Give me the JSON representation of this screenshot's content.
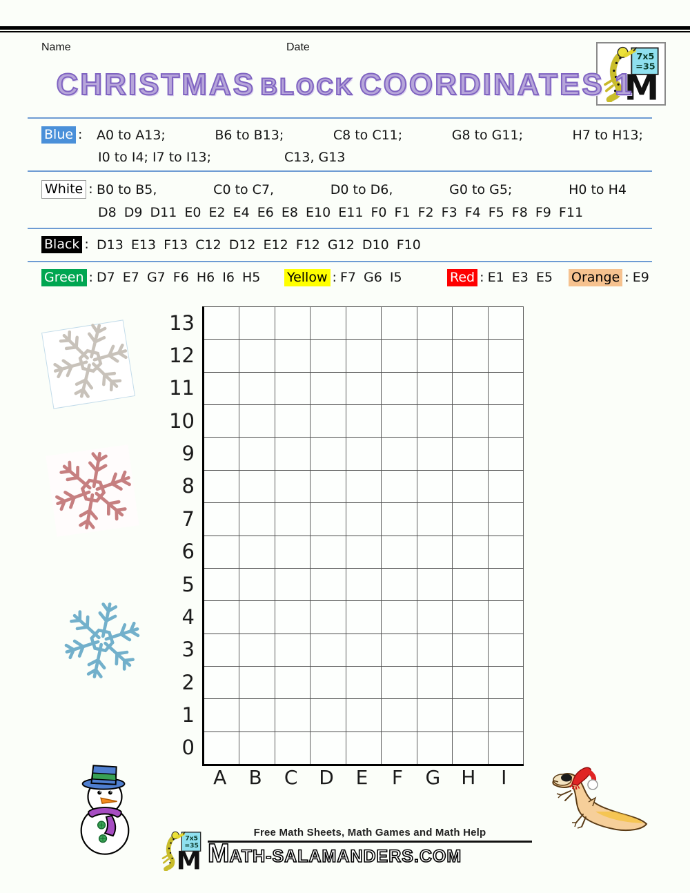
{
  "page": {
    "name_label": "Name",
    "date_label": "Date"
  },
  "title": {
    "word1": "CHRISTMAS",
    "word2": "BLOCK",
    "word3": "COORDINATES 1"
  },
  "logo": {
    "equation_line1": "7x5",
    "equation_line2": "=35",
    "monogram": "M"
  },
  "sections": {
    "blue": {
      "label": "Blue",
      "bg": "#4a90d9",
      "fg": "#ffffff",
      "colon": ":",
      "line1": [
        "A0 to A13;",
        "B6 to B13;",
        "C8 to C11;",
        "G8 to G11;",
        "H7 to H13;"
      ],
      "line2_left": "I0 to I4;  I7 to I13;",
      "line2_right": "C13, G13"
    },
    "white": {
      "label": "White",
      "bg": "#ffffff",
      "fg": "#000000",
      "colon": ":",
      "line1": [
        "B0 to B5,",
        "C0 to C7,",
        "D0 to D6,",
        "G0 to G5;",
        "H0 to H4"
      ],
      "line2": "D8 D9 D11 E0 E2 E4 E6 E8 E10 E11 F0 F1 F2 F3 F4 F5 F8 F9 F11"
    },
    "black": {
      "label": "Black",
      "bg": "#000000",
      "fg": "#ffffff",
      "colon": ":",
      "items": "D13 E13 F13 C12 D12 E12 F12 G12 D10 F10"
    },
    "green": {
      "label": "Green",
      "bg": "#00a651",
      "fg": "#ffffff",
      "colon": ":",
      "items": "D7 E7 G7 F6 H6 I6 H5"
    },
    "yellow": {
      "label": "Yellow",
      "bg": "#ffff00",
      "fg": "#000000",
      "colon": ":",
      "items": "F7 G6 I5"
    },
    "red": {
      "label": "Red",
      "bg": "#fe0000",
      "fg": "#ffffff",
      "colon": ":",
      "items": "E1 E3 E5"
    },
    "orange": {
      "label": "Orange",
      "bg": "#f6c28f",
      "fg": "#000000",
      "colon": ":",
      "items": "E9"
    }
  },
  "grid": {
    "row_labels": [
      "13",
      "12",
      "11",
      "10",
      "9",
      "8",
      "7",
      "6",
      "5",
      "4",
      "3",
      "2",
      "1",
      "0"
    ],
    "col_labels": [
      "A",
      "B",
      "C",
      "D",
      "E",
      "F",
      "G",
      "H",
      "I"
    ],
    "rows": 14,
    "cols": 9
  },
  "decorations": {
    "snowflake_grey_color": "#c8c2ba",
    "snowflake_rose_color": "#c67f80",
    "snowflake_blue_color": "#72b0cb"
  },
  "footer": {
    "tagline": "Free Math Sheets, Math Games and Math Help",
    "brand_m": "M",
    "brand_rest": "ATH-SALAMANDERS.COM"
  },
  "colors": {
    "separator": "#6d9bd3",
    "title_fill": "#b7a6da",
    "title_outline": "#7f63c1",
    "grid_axis": "#000000"
  }
}
